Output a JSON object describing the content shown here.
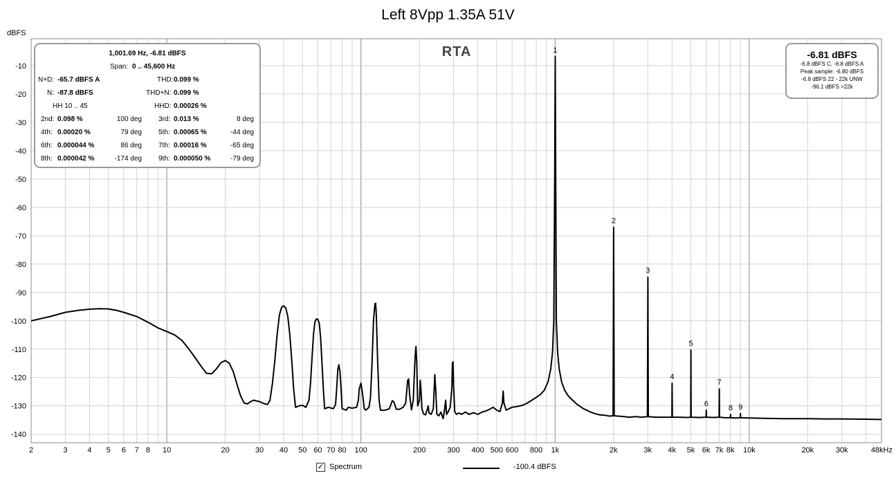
{
  "window": {
    "title": "Left 8Vpp 1.35A   51V",
    "y_unit": "dBFS",
    "rta_label": "RTA"
  },
  "info_panel": {
    "line1": "1,001.69 Hz, -6.81 dBFS",
    "span_label": "Span:",
    "span_value": "0 .. 45,600 Hz",
    "nd_label": "N+D:",
    "nd_value": "-65.7 dBFS A",
    "thd_label": "THD:",
    "thd_value": "0.099 %",
    "n_label": "N:",
    "n_value": "-87.8 dBFS",
    "thdn_label": "THD+N:",
    "thdn_value": "0.099 %",
    "hh_label": "HH 10 .. 45",
    "hhd_label": "HHD:",
    "hhd_value": "0.00026 %",
    "harmonics": [
      {
        "l1": "2nd:",
        "v1": "0.098 %",
        "d1": "100 deg",
        "l2": "3rd:",
        "v2": "0.013 %",
        "d2": "8 deg"
      },
      {
        "l1": "4th:",
        "v1": "0.00020 %",
        "d1": "79 deg",
        "l2": "5th:",
        "v2": "0.00065 %",
        "d2": "-44 deg"
      },
      {
        "l1": "6th:",
        "v1": "0.000044 %",
        "d1": "86 deg",
        "l2": "7th:",
        "v2": "0.00016 %",
        "d2": "-65 deg"
      },
      {
        "l1": "8th:",
        "v1": "0.000042 %",
        "d1": "-174 deg",
        "l2": "9th:",
        "v2": "0.000050 %",
        "d2": "-79 deg"
      }
    ]
  },
  "peak_panel": {
    "value": "-6.81 dBFS",
    "lines": [
      "-6.8 dBFS C, -6.8 dBFS A",
      "Peak sample: -6.80 dBFS",
      "-6.8 dBFS 22 - 22k UNW",
      "-96.1 dBFS >22k"
    ]
  },
  "legend": {
    "checkbox_mark": "✓",
    "spectrum_label": "Spectrum",
    "series_value": "-100.4 dBFS"
  },
  "chart_data": {
    "type": "line",
    "x_scale": "log",
    "xlim": [
      2,
      48000
    ],
    "ylim": [
      -143,
      -0.5
    ],
    "grid": true,
    "x_ticks": [
      {
        "v": 2,
        "label": "2"
      },
      {
        "v": 3,
        "label": "3"
      },
      {
        "v": 4,
        "label": "4"
      },
      {
        "v": 5,
        "label": "5"
      },
      {
        "v": 6,
        "label": "6"
      },
      {
        "v": 7,
        "label": "7"
      },
      {
        "v": 8,
        "label": "8"
      },
      {
        "v": 10,
        "label": "10"
      },
      {
        "v": 20,
        "label": "20"
      },
      {
        "v": 30,
        "label": "30"
      },
      {
        "v": 40,
        "label": "40"
      },
      {
        "v": 50,
        "label": "50"
      },
      {
        "v": 60,
        "label": "60"
      },
      {
        "v": 70,
        "label": "70"
      },
      {
        "v": 80,
        "label": "80"
      },
      {
        "v": 100,
        "label": "100"
      },
      {
        "v": 200,
        "label": "200"
      },
      {
        "v": 300,
        "label": "300"
      },
      {
        "v": 400,
        "label": "400"
      },
      {
        "v": 500,
        "label": "500"
      },
      {
        "v": 600,
        "label": "600"
      },
      {
        "v": 800,
        "label": "800"
      },
      {
        "v": 1000,
        "label": "1k"
      },
      {
        "v": 2000,
        "label": "2k"
      },
      {
        "v": 3000,
        "label": "3k"
      },
      {
        "v": 4000,
        "label": "4k"
      },
      {
        "v": 5000,
        "label": "5k"
      },
      {
        "v": 6000,
        "label": "6k"
      },
      {
        "v": 7000,
        "label": "7k"
      },
      {
        "v": 8000,
        "label": "8k"
      },
      {
        "v": 10000,
        "label": "10k"
      },
      {
        "v": 20000,
        "label": "20k"
      },
      {
        "v": 30000,
        "label": "30k"
      },
      {
        "v": 48000,
        "label": "48kHz"
      }
    ],
    "y_ticks": [
      {
        "v": -10,
        "label": "-10"
      },
      {
        "v": -20,
        "label": "-20"
      },
      {
        "v": -30,
        "label": "-30"
      },
      {
        "v": -40,
        "label": "-40"
      },
      {
        "v": -50,
        "label": "-50"
      },
      {
        "v": -60,
        "label": "-60"
      },
      {
        "v": -70,
        "label": "-70"
      },
      {
        "v": -80,
        "label": "-80"
      },
      {
        "v": -90,
        "label": "-90"
      },
      {
        "v": -100,
        "label": "-100"
      },
      {
        "v": -110,
        "label": "-110"
      },
      {
        "v": -120,
        "label": "-120"
      },
      {
        "v": -130,
        "label": "-130"
      },
      {
        "v": -140,
        "label": "-140"
      }
    ],
    "series": [
      {
        "color": "#000000",
        "points": [
          [
            2,
            -100
          ],
          [
            2.5,
            -98.5
          ],
          [
            3,
            -97
          ],
          [
            3.5,
            -96.3
          ],
          [
            4,
            -95.9
          ],
          [
            4.5,
            -95.7
          ],
          [
            5,
            -95.8
          ],
          [
            5.5,
            -96.3
          ],
          [
            6,
            -97
          ],
          [
            7,
            -98.5
          ],
          [
            8,
            -100.5
          ],
          [
            9,
            -102.5
          ],
          [
            10,
            -103.8
          ],
          [
            11,
            -105
          ],
          [
            12,
            -107
          ],
          [
            13,
            -110
          ],
          [
            14,
            -113
          ],
          [
            15,
            -116
          ],
          [
            16,
            -118.5
          ],
          [
            17,
            -118.7
          ],
          [
            18,
            -117
          ],
          [
            19,
            -114.8
          ],
          [
            20,
            -114
          ],
          [
            21,
            -115
          ],
          [
            22,
            -118
          ],
          [
            23,
            -122.5
          ],
          [
            24,
            -126.5
          ],
          [
            25,
            -129
          ],
          [
            26,
            -129.3
          ],
          [
            27,
            -128.5
          ],
          [
            28,
            -128
          ],
          [
            30,
            -128.5
          ],
          [
            32,
            -129.3
          ],
          [
            33,
            -129.5
          ],
          [
            34,
            -128
          ],
          [
            35,
            -122
          ],
          [
            36,
            -114
          ],
          [
            37,
            -105
          ],
          [
            38,
            -98
          ],
          [
            39,
            -95.2
          ],
          [
            40,
            -94.7
          ],
          [
            41,
            -95.5
          ],
          [
            42,
            -98.5
          ],
          [
            43,
            -105
          ],
          [
            44,
            -114
          ],
          [
            45,
            -124
          ],
          [
            46,
            -130.5
          ],
          [
            48,
            -130
          ],
          [
            50,
            -129.8
          ],
          [
            52,
            -130.5
          ],
          [
            54,
            -128
          ],
          [
            55,
            -122
          ],
          [
            56,
            -113
          ],
          [
            57,
            -104.5
          ],
          [
            58,
            -100.2
          ],
          [
            59,
            -99.3
          ],
          [
            60,
            -99.5
          ],
          [
            61,
            -101
          ],
          [
            62,
            -106
          ],
          [
            63,
            -115
          ],
          [
            64,
            -124
          ],
          [
            65,
            -131
          ],
          [
            68,
            -130.5
          ],
          [
            72,
            -131
          ],
          [
            74,
            -129.5
          ],
          [
            75,
            -124
          ],
          [
            76,
            -117
          ],
          [
            77,
            -115.5
          ],
          [
            78,
            -118
          ],
          [
            79,
            -124
          ],
          [
            80,
            -131
          ],
          [
            84,
            -131.5
          ],
          [
            86,
            -130.5
          ],
          [
            90,
            -130.8
          ],
          [
            95,
            -130.5
          ],
          [
            97,
            -128
          ],
          [
            98,
            -124
          ],
          [
            100,
            -122
          ],
          [
            102,
            -126
          ],
          [
            104,
            -131
          ],
          [
            106,
            -131.5
          ],
          [
            110,
            -130.5
          ],
          [
            112,
            -127
          ],
          [
            114,
            -115
          ],
          [
            116,
            -100
          ],
          [
            118,
            -94
          ],
          [
            119,
            -93.8
          ],
          [
            120,
            -98
          ],
          [
            122,
            -115
          ],
          [
            124,
            -128
          ],
          [
            126,
            -131.5
          ],
          [
            130,
            -131.6
          ],
          [
            135,
            -131.4
          ],
          [
            140,
            -131
          ],
          [
            145,
            -128.2
          ],
          [
            148,
            -128.7
          ],
          [
            152,
            -131.2
          ],
          [
            158,
            -131.2
          ],
          [
            165,
            -130.5
          ],
          [
            170,
            -129
          ],
          [
            174,
            -121
          ],
          [
            176,
            -120.5
          ],
          [
            178,
            -126
          ],
          [
            182,
            -131.4
          ],
          [
            186,
            -128
          ],
          [
            190,
            -113
          ],
          [
            192,
            -109
          ],
          [
            194,
            -115
          ],
          [
            196,
            -130
          ],
          [
            200,
            -128
          ],
          [
            202,
            -121
          ],
          [
            204,
            -125
          ],
          [
            206,
            -131
          ],
          [
            210,
            -132.8
          ],
          [
            215,
            -133.2
          ],
          [
            220,
            -131
          ],
          [
            222,
            -130
          ],
          [
            224,
            -132.5
          ],
          [
            230,
            -133
          ],
          [
            236,
            -131
          ],
          [
            240,
            -119
          ],
          [
            243,
            -125
          ],
          [
            246,
            -133
          ],
          [
            252,
            -133.5
          ],
          [
            258,
            -132.2
          ],
          [
            265,
            -134.5
          ],
          [
            270,
            -131
          ],
          [
            273,
            -128
          ],
          [
            276,
            -133
          ],
          [
            282,
            -132
          ],
          [
            288,
            -130.5
          ],
          [
            294,
            -124
          ],
          [
            296,
            -115
          ],
          [
            298,
            -114.5
          ],
          [
            300,
            -123
          ],
          [
            304,
            -132
          ],
          [
            310,
            -133
          ],
          [
            320,
            -132.5
          ],
          [
            330,
            -133
          ],
          [
            345,
            -132.2
          ],
          [
            360,
            -133
          ],
          [
            380,
            -132.4
          ],
          [
            400,
            -133
          ],
          [
            420,
            -132.2
          ],
          [
            440,
            -131.8
          ],
          [
            460,
            -131.2
          ],
          [
            480,
            -130.5
          ],
          [
            500,
            -131.5
          ],
          [
            520,
            -132
          ],
          [
            535,
            -129
          ],
          [
            540,
            -124.8
          ],
          [
            545,
            -129
          ],
          [
            560,
            -131.5
          ],
          [
            600,
            -130.5
          ],
          [
            640,
            -130.2
          ],
          [
            680,
            -129.8
          ],
          [
            720,
            -129
          ],
          [
            760,
            -128
          ],
          [
            800,
            -127
          ],
          [
            840,
            -126
          ],
          [
            880,
            -124.5
          ],
          [
            920,
            -121.5
          ],
          [
            950,
            -117
          ],
          [
            970,
            -111
          ],
          [
            985,
            -100
          ],
          [
            995,
            -50
          ],
          [
            1001.7,
            -6.8
          ],
          [
            1008,
            -50
          ],
          [
            1015,
            -100
          ],
          [
            1030,
            -111
          ],
          [
            1050,
            -117
          ],
          [
            1080,
            -121.5
          ],
          [
            1120,
            -124.5
          ],
          [
            1170,
            -126.5
          ],
          [
            1230,
            -128
          ],
          [
            1300,
            -129.5
          ],
          [
            1400,
            -131
          ],
          [
            1500,
            -132
          ],
          [
            1600,
            -132.7
          ],
          [
            1700,
            -133.2
          ],
          [
            1800,
            -133.3
          ],
          [
            1900,
            -133.6
          ],
          [
            1990,
            -133.5
          ],
          [
            2003,
            -67
          ],
          [
            2016,
            -133.5
          ],
          [
            2200,
            -133.7
          ],
          [
            2400,
            -134
          ],
          [
            2600,
            -133.8
          ],
          [
            2800,
            -134
          ],
          [
            2990,
            -133.8
          ],
          [
            3005,
            -84.6
          ],
          [
            3020,
            -133.8
          ],
          [
            3300,
            -134
          ],
          [
            3600,
            -134
          ],
          [
            3900,
            -134
          ],
          [
            3995,
            -134
          ],
          [
            4007,
            -122
          ],
          [
            4020,
            -134
          ],
          [
            4400,
            -134
          ],
          [
            4800,
            -134.1
          ],
          [
            4995,
            -134
          ],
          [
            5008,
            -110.3
          ],
          [
            5022,
            -134
          ],
          [
            5500,
            -134.1
          ],
          [
            5995,
            -134
          ],
          [
            6010,
            -131.5
          ],
          [
            6025,
            -134
          ],
          [
            6500,
            -134.1
          ],
          [
            6995,
            -134
          ],
          [
            7012,
            -124
          ],
          [
            7030,
            -134
          ],
          [
            7500,
            -134.2
          ],
          [
            7995,
            -134.2
          ],
          [
            8014,
            -133
          ],
          [
            8030,
            -134.2
          ],
          [
            8500,
            -134.3
          ],
          [
            9000,
            -134.2
          ],
          [
            9016,
            -132.7
          ],
          [
            9035,
            -134.2
          ],
          [
            10000,
            -134.3
          ],
          [
            12000,
            -134.4
          ],
          [
            15000,
            -134.5
          ],
          [
            20000,
            -134.5
          ],
          [
            25000,
            -134.6
          ],
          [
            30000,
            -134.6
          ],
          [
            40000,
            -134.7
          ],
          [
            48000,
            -134.8
          ]
        ]
      }
    ],
    "harmonic_markers": [
      {
        "label": "1",
        "x": 1001.7,
        "y": -6.8
      },
      {
        "label": "2",
        "x": 2003,
        "y": -67
      },
      {
        "label": "3",
        "x": 3005,
        "y": -84.6
      },
      {
        "label": "4",
        "x": 4007,
        "y": -122
      },
      {
        "label": "5",
        "x": 5008,
        "y": -110.3
      },
      {
        "label": "6",
        "x": 6010,
        "y": -131.5
      },
      {
        "label": "7",
        "x": 7012,
        "y": -124
      },
      {
        "label": "8",
        "x": 8014,
        "y": -133
      },
      {
        "label": "9",
        "x": 9016,
        "y": -132.7
      }
    ]
  }
}
